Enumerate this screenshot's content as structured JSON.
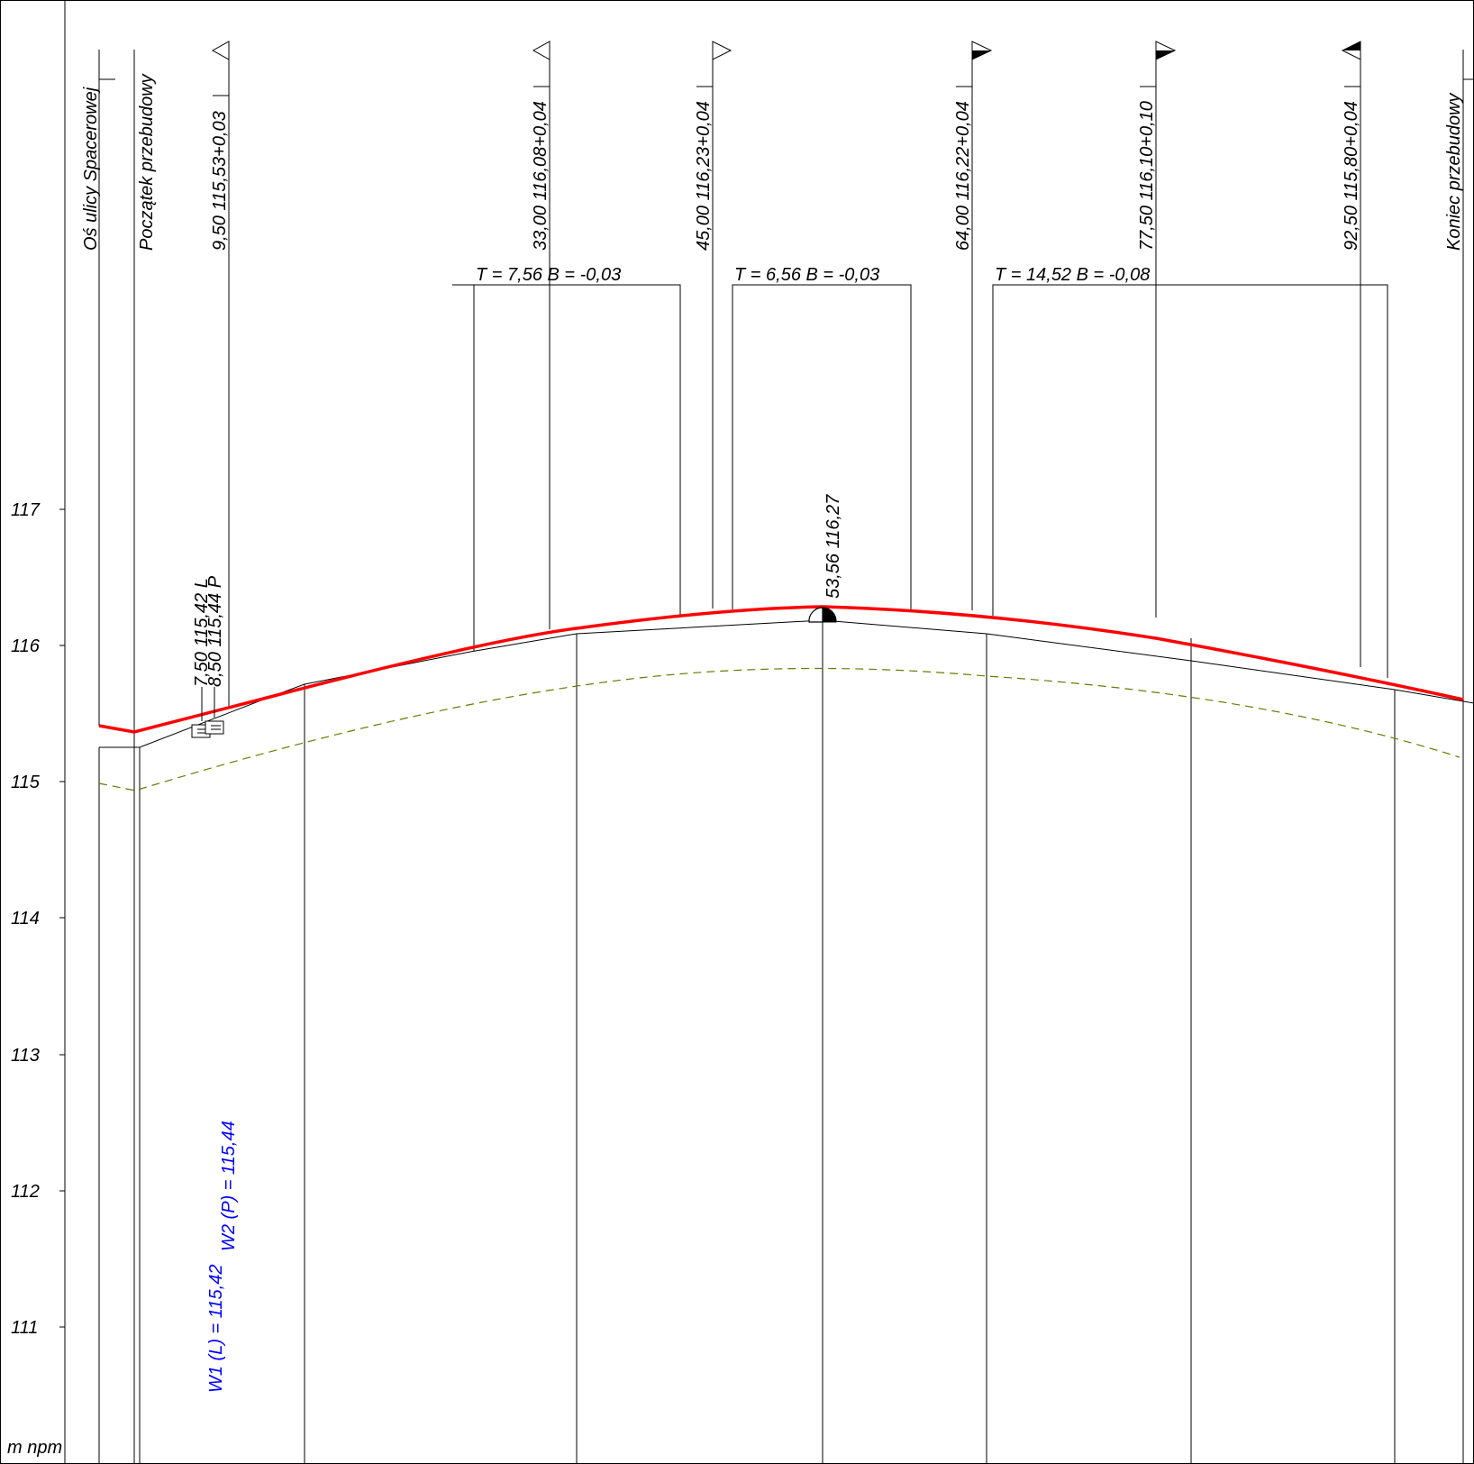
{
  "axis": {
    "unit_label": "m  npm",
    "elevation_ticks": [
      {
        "label": "117",
        "value": 117
      },
      {
        "label": "116",
        "value": 116
      },
      {
        "label": "115",
        "value": 115
      },
      {
        "label": "114",
        "value": 114
      },
      {
        "label": "113",
        "value": 113
      },
      {
        "label": "112",
        "value": 112
      },
      {
        "label": "111",
        "value": 111
      }
    ]
  },
  "station_labels": [
    {
      "text": "Oś ulicy Spacerowej",
      "marker": "none"
    },
    {
      "text": "Początek przebudowy",
      "marker": "none"
    },
    {
      "text": "9,50 115,53+0,03",
      "marker": "hollow-left"
    },
    {
      "text": "33,00 116,08+0,04",
      "marker": "hollow-left"
    },
    {
      "text": "45,00 116,23+0,04",
      "marker": "hollow-right"
    },
    {
      "text": "64,00 116,22+0,04",
      "marker": "half-right"
    },
    {
      "text": "77,50 116,10+0,10",
      "marker": "half-right"
    },
    {
      "text": "92,50 115,80+0,04",
      "marker": "half-left"
    },
    {
      "text": "Koniec przebudowy",
      "marker": "none"
    }
  ],
  "curves": [
    {
      "text": "T = 7,56  B = -0,03"
    },
    {
      "text": "T = 6,56  B = -0,03"
    },
    {
      "text": "T = 14,52  B = -0,08"
    }
  ],
  "crest_label": "53,56 116,27",
  "inlet_labels": [
    "7,50 115,42 L",
    "8,50 115,44 P"
  ],
  "wells": [
    "W1 (L) = 115,42",
    "W2 (P) = 115,44"
  ],
  "colors": {
    "design_line": "#ff0000",
    "existing_line": "#000000",
    "offset_line": "#6b7a00",
    "well_text": "#0000ff"
  }
}
